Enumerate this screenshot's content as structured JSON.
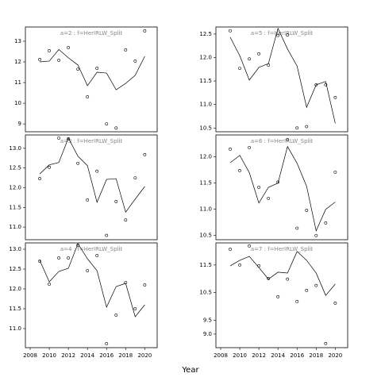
{
  "x_label": "Year",
  "chart_data": [
    {
      "type": "line",
      "title": "a=2 : f=HerIRLW_Split",
      "x": [
        2009,
        2010,
        2011,
        2012,
        2013,
        2014,
        2015,
        2016,
        2017,
        2018,
        2019,
        2020
      ],
      "series": [
        {
          "mark": "point",
          "color": "#000000",
          "values": [
            12.12,
            12.54,
            12.08,
            12.69,
            11.65,
            10.31,
            11.69,
            9.0,
            8.8,
            12.58,
            12.04,
            13.5
          ]
        },
        {
          "mark": "line",
          "color": "#000000",
          "values": [
            12.0,
            12.04,
            12.6,
            12.2,
            11.85,
            10.85,
            11.5,
            11.46,
            10.65,
            10.96,
            11.35,
            12.27
          ]
        }
      ],
      "xlim": [
        2007.5,
        2021.3
      ],
      "ylim": [
        8.62,
        13.69
      ],
      "yticks": [
        9,
        10,
        11,
        12,
        13
      ]
    },
    {
      "type": "line",
      "title": "a=3 : f=HerIRLW_Split",
      "x": [
        2009,
        2010,
        2011,
        2012,
        2013,
        2014,
        2015,
        2016,
        2017,
        2018,
        2019,
        2020
      ],
      "series": [
        {
          "mark": "point",
          "color": "#000000",
          "values": [
            12.23,
            12.52,
            13.26,
            13.24,
            12.62,
            11.69,
            12.42,
            10.79,
            11.65,
            11.18,
            12.25,
            12.84
          ]
        },
        {
          "mark": "line",
          "color": "#000000",
          "values": [
            12.35,
            12.58,
            12.64,
            13.26,
            12.8,
            12.56,
            11.63,
            12.21,
            12.23,
            11.38,
            11.71,
            12.03
          ]
        }
      ],
      "xlim": [
        2007.5,
        2021.3
      ],
      "ylim": [
        10.68,
        13.34
      ],
      "yticks": [
        {
          "value": 11,
          "label": "11.0"
        },
        11.5,
        {
          "value": 12,
          "label": "12.0"
        },
        12.5,
        {
          "value": 13,
          "label": "13.0"
        }
      ]
    },
    {
      "type": "line",
      "title": "a=4 : f=HerIRLW_Split",
      "x": [
        2009,
        2010,
        2011,
        2012,
        2013,
        2014,
        2015,
        2016,
        2017,
        2018,
        2019,
        2020
      ],
      "series": [
        {
          "mark": "point",
          "color": "#000000",
          "values": [
            12.7,
            12.12,
            12.78,
            12.78,
            13.1,
            12.46,
            12.84,
            10.62,
            11.34,
            12.16,
            11.5,
            12.1
          ]
        },
        {
          "mark": "line",
          "color": "#000000",
          "values": [
            12.72,
            12.18,
            12.44,
            12.52,
            13.14,
            12.76,
            12.46,
            11.54,
            12.06,
            12.14,
            11.3,
            11.6
          ]
        }
      ],
      "xlim": [
        2007.5,
        2021.3
      ],
      "ylim": [
        10.52,
        13.16
      ],
      "yticks": [
        {
          "value": 11,
          "label": "11.0"
        },
        11.5,
        {
          "value": 12,
          "label": "12.0"
        },
        12.5,
        {
          "value": 13,
          "label": "13.0"
        }
      ],
      "xticks": [
        2008,
        2010,
        2012,
        2014,
        2016,
        2018,
        2020
      ]
    },
    {
      "type": "line",
      "title": "a=5 : f=HerIRLW_Split",
      "x": [
        2009,
        2010,
        2011,
        2012,
        2013,
        2014,
        2015,
        2016,
        2017,
        2018,
        2019,
        2020
      ],
      "series": [
        {
          "mark": "point",
          "color": "#000000",
          "values": [
            12.57,
            11.77,
            11.97,
            12.08,
            11.84,
            12.47,
            12.48,
            10.5,
            10.53,
            11.42,
            11.42,
            11.15
          ]
        },
        {
          "mark": "line",
          "color": "#000000",
          "values": [
            12.43,
            12.04,
            11.52,
            11.79,
            11.87,
            12.62,
            12.18,
            11.82,
            10.94,
            11.42,
            11.49,
            10.6
          ]
        }
      ],
      "xlim": [
        2007.5,
        2021.3
      ],
      "ylim": [
        10.42,
        12.65
      ],
      "yticks": [
        10.5,
        {
          "value": 11,
          "label": "11.0"
        },
        11.5,
        {
          "value": 12,
          "label": "12.0"
        },
        12.5
      ]
    },
    {
      "type": "line",
      "title": "a=6 : f=HerIRLW_Split",
      "x": [
        2009,
        2010,
        2011,
        2012,
        2013,
        2014,
        2015,
        2016,
        2017,
        2018,
        2019,
        2020
      ],
      "series": [
        {
          "mark": "point",
          "color": "#000000",
          "values": [
            12.15,
            11.74,
            12.18,
            11.42,
            11.21,
            11.52,
            12.33,
            10.64,
            10.98,
            10.5,
            10.74,
            11.71
          ]
        },
        {
          "mark": "line",
          "color": "#000000",
          "values": [
            11.89,
            12.03,
            11.7,
            11.12,
            11.42,
            11.5,
            12.2,
            11.88,
            11.44,
            10.59,
            11.0,
            11.14
          ]
        }
      ],
      "xlim": [
        2007.5,
        2021.3
      ],
      "ylim": [
        10.42,
        12.42
      ],
      "yticks": [
        10.5,
        {
          "value": 11,
          "label": "11.0"
        },
        11.5,
        {
          "value": 12,
          "label": "12.0"
        }
      ]
    },
    {
      "type": "line",
      "title": "a=7 : f=HerIRLW_Split",
      "x": [
        2009,
        2010,
        2011,
        2012,
        2013,
        2014,
        2015,
        2016,
        2017,
        2018,
        2019,
        2020
      ],
      "series": [
        {
          "mark": "point",
          "color": "#000000",
          "values": [
            12.07,
            11.5,
            12.19,
            11.47,
            11.01,
            10.35,
            10.99,
            10.18,
            10.58,
            10.76,
            8.66,
            10.12
          ]
        },
        {
          "mark": "line",
          "color": "#000000",
          "values": [
            11.47,
            11.67,
            11.81,
            11.41,
            10.99,
            11.24,
            11.21,
            11.99,
            11.67,
            11.21,
            10.4,
            10.81
          ]
        }
      ],
      "xlim": [
        2007.5,
        2021.3
      ],
      "ylim": [
        8.51,
        12.3
      ],
      "yticks": [
        {
          "value": 9,
          "label": "9.0"
        },
        9.5,
        10.5,
        11.5
      ],
      "xticks": [
        2008,
        2010,
        2012,
        2014,
        2016,
        2018,
        2020
      ]
    }
  ]
}
